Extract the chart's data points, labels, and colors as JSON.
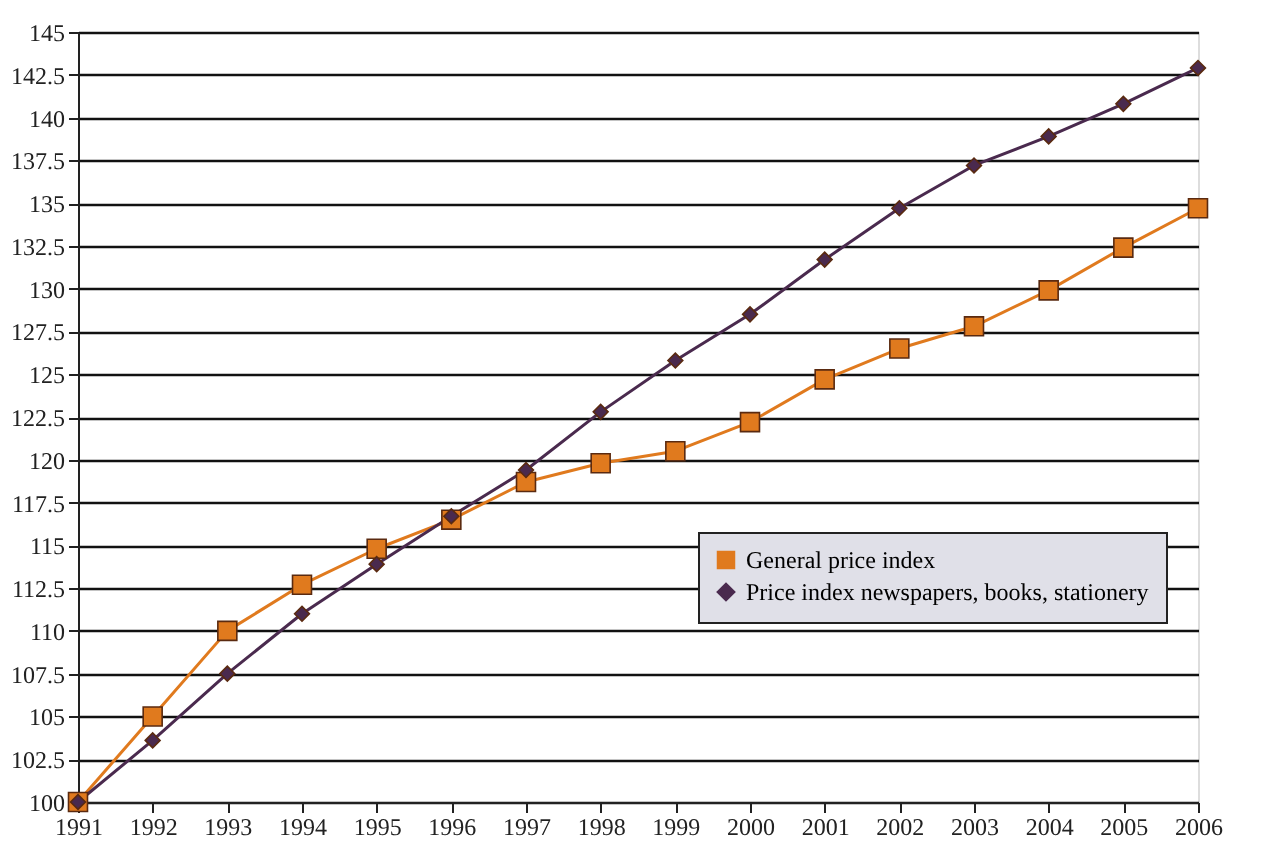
{
  "chart_data": {
    "type": "line",
    "x": [
      1991,
      1992,
      1993,
      1994,
      1995,
      1996,
      1997,
      1998,
      1999,
      2000,
      2001,
      2002,
      2003,
      2004,
      2005,
      2006
    ],
    "series": [
      {
        "name": "General price index",
        "color": "#e07a1e",
        "marker": "square",
        "values": [
          100,
          105,
          110,
          112.7,
          114.8,
          116.5,
          118.7,
          119.8,
          120.5,
          122.2,
          124.7,
          126.5,
          127.8,
          129.9,
          132.4,
          134.7
        ]
      },
      {
        "name": "Price index newspapers, books, stationery",
        "color": "#4a2a4e",
        "marker": "diamond",
        "values": [
          100,
          103.6,
          107.5,
          111,
          113.9,
          116.7,
          119.4,
          122.8,
          125.8,
          128.5,
          131.7,
          134.7,
          137.2,
          138.9,
          140.8,
          142.9
        ]
      }
    ],
    "xlim": [
      1991,
      2006
    ],
    "xticks": [
      1991,
      1992,
      1993,
      1994,
      1995,
      1996,
      1997,
      1998,
      1999,
      2000,
      2001,
      2002,
      2003,
      2004,
      2005,
      2006
    ],
    "ylim": [
      100,
      145
    ],
    "yticks": [
      100,
      102.5,
      105,
      107.5,
      110,
      112.5,
      115,
      117.5,
      120,
      122.5,
      125,
      127.5,
      130,
      132.5,
      135,
      137.5,
      140,
      142.5,
      145
    ],
    "grid": "y",
    "legend": "bottom right"
  }
}
